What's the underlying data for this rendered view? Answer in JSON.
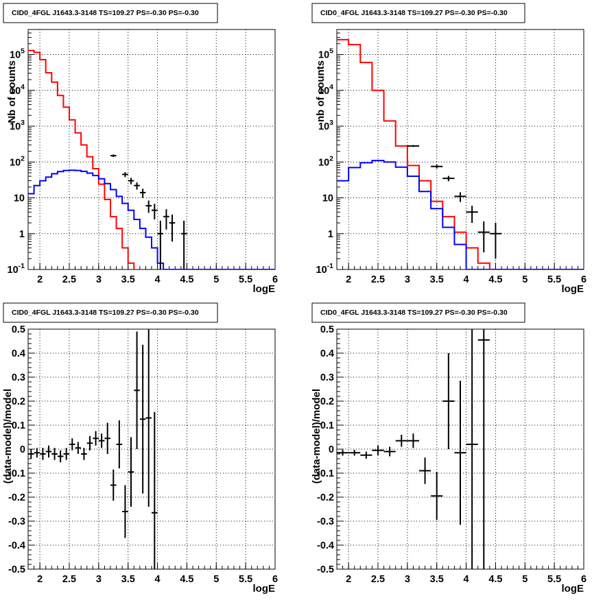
{
  "chart_data": [
    {
      "type": "histogram",
      "title": "CID0_4FGL J1643.3-3148 TS=109.27 PS=-0.30 PS=-0.30",
      "xlabel": "logE",
      "ylabel": "Nb of counts",
      "xlim": [
        1.8,
        6.0
      ],
      "ylim": [
        0.1,
        500000
      ],
      "yscale": "log",
      "grid": true,
      "x_ticks": [
        "2",
        "2.5",
        "3",
        "3.5",
        "4",
        "4.5",
        "5",
        "5.5",
        "6"
      ],
      "y_ticks": [
        "10^-1",
        "1",
        "10",
        "10^2",
        "10^3",
        "10^4",
        "10^5"
      ],
      "bin_edges": [
        1.8,
        1.9,
        2.0,
        2.1,
        2.2,
        2.3,
        2.4,
        2.5,
        2.6,
        2.7,
        2.8,
        2.9,
        3.0,
        3.1,
        3.2,
        3.3,
        3.4,
        3.5,
        3.6,
        3.7,
        3.8,
        3.9,
        4.0,
        4.1,
        4.2,
        4.3,
        4.4,
        4.5,
        4.6,
        4.7,
        4.8,
        4.9,
        5.0,
        5.1,
        5.2,
        5.3,
        5.4,
        5.5,
        5.6,
        5.7,
        5.8,
        5.9,
        6.0
      ],
      "series": [
        {
          "color": "#ff0000",
          "style": "step",
          "values": [
            130000,
            115000,
            72000,
            31000,
            17000,
            7200,
            3400,
            1500,
            650,
            300,
            140,
            65,
            24,
            9,
            3,
            1.4,
            0.4,
            0.15,
            0.05,
            0.05,
            0.05,
            0.05,
            0.05,
            0.05,
            0.05,
            0.05,
            0.05,
            0.05,
            0.05,
            0.05,
            0.05,
            0.05,
            0.05,
            0.05,
            0.05,
            0.05,
            0.05,
            0.05,
            0.05,
            0.05,
            0.05,
            0.05
          ]
        },
        {
          "color": "#0000ff",
          "style": "step",
          "values": [
            13,
            22,
            30,
            38,
            47,
            54,
            58,
            59,
            58,
            55,
            49,
            42,
            34,
            25,
            17,
            11,
            7,
            4.5,
            2.5,
            1.4,
            0.8,
            0.4,
            0.15,
            0.1,
            0.1,
            0.1,
            0.1,
            0.1,
            0.1,
            0.1,
            0.1,
            0.1,
            0.1,
            0.1,
            0.1,
            0.1,
            0.1,
            0.1,
            0.1,
            0.1,
            0.1,
            0.1
          ]
        },
        {
          "color": "#000000",
          "style": "errorbar",
          "points": [
            {
              "x": 3.25,
              "y": 150,
              "ylo": 138,
              "yhi": 162,
              "xerr": 0.05
            },
            {
              "x": 3.45,
              "y": 45,
              "ylo": 38,
              "yhi": 52,
              "xerr": 0.05
            },
            {
              "x": 3.55,
              "y": 30,
              "ylo": 24,
              "yhi": 36,
              "xerr": 0.05
            },
            {
              "x": 3.65,
              "y": 22,
              "ylo": 17,
              "yhi": 27,
              "xerr": 0.05
            },
            {
              "x": 3.75,
              "y": 14,
              "ylo": 10,
              "yhi": 18,
              "xerr": 0.05
            },
            {
              "x": 3.85,
              "y": 6,
              "ylo": 3.8,
              "yhi": 8.4,
              "xerr": 0.05
            },
            {
              "x": 3.95,
              "y": 4.5,
              "ylo": 2.5,
              "yhi": 6.8,
              "xerr": 0.05
            },
            {
              "x": 4.05,
              "y": 1,
              "ylo": 0.05,
              "yhi": 2.3,
              "xerr": 0.05
            },
            {
              "x": 4.15,
              "y": 3,
              "ylo": 1.3,
              "yhi": 4.8,
              "xerr": 0.05
            },
            {
              "x": 4.25,
              "y": 2,
              "ylo": 0.6,
              "yhi": 3.4,
              "xerr": 0.05
            },
            {
              "x": 4.45,
              "y": 1,
              "ylo": 0.05,
              "yhi": 2.3,
              "xerr": 0.05
            }
          ]
        }
      ]
    },
    {
      "type": "histogram",
      "title": "CID0_4FGL J1643.3-3148 TS=109.27 PS=-0.30 PS=-0.30",
      "xlabel": "logE",
      "ylabel": "nb of counts",
      "xlim": [
        1.8,
        6.0
      ],
      "ylim": [
        0.1,
        500000
      ],
      "yscale": "log",
      "grid": true,
      "x_ticks": [
        "2",
        "2.5",
        "3",
        "3.5",
        "4",
        "4.5",
        "5",
        "5.5",
        "6"
      ],
      "y_ticks": [
        "10^-1",
        "1",
        "10",
        "10^2",
        "10^3",
        "10^4",
        "10^5"
      ],
      "bin_edges": [
        1.8,
        2.0,
        2.2,
        2.4,
        2.6,
        2.8,
        3.0,
        3.2,
        3.4,
        3.6,
        3.8,
        4.0,
        4.2,
        4.4,
        4.6,
        4.8,
        5.0,
        5.2,
        5.4,
        5.6,
        5.8,
        6.0
      ],
      "series": [
        {
          "color": "#ff0000",
          "style": "step",
          "values": [
            260000,
            190000,
            60000,
            10000,
            1400,
            280,
            80,
            30,
            8,
            3,
            1.1,
            0.4,
            0.15,
            0.05,
            0.05,
            0.05,
            0.05,
            0.05,
            0.05,
            0.05,
            0.05
          ]
        },
        {
          "color": "#0000ff",
          "style": "step",
          "values": [
            30,
            70,
            95,
            110,
            100,
            72,
            40,
            15,
            5,
            1.5,
            0.5,
            0.1,
            0.1,
            0.1,
            0.1,
            0.1,
            0.1,
            0.1,
            0.1,
            0.1,
            0.1
          ]
        },
        {
          "color": "#000000",
          "style": "errorbar",
          "points": [
            {
              "x": 3.1,
              "y": 280,
              "ylo": 263,
              "yhi": 297,
              "xerr": 0.1
            },
            {
              "x": 3.5,
              "y": 75,
              "ylo": 66,
              "yhi": 84,
              "xerr": 0.1
            },
            {
              "x": 3.7,
              "y": 35,
              "ylo": 29,
              "yhi": 41,
              "xerr": 0.1
            },
            {
              "x": 3.9,
              "y": 11,
              "ylo": 7.7,
              "yhi": 14.3,
              "xerr": 0.1
            },
            {
              "x": 4.1,
              "y": 4,
              "ylo": 2,
              "yhi": 6,
              "xerr": 0.1
            },
            {
              "x": 4.3,
              "y": 1.1,
              "ylo": 0.3,
              "yhi": 2.2,
              "xerr": 0.1
            },
            {
              "x": 4.5,
              "y": 1.0,
              "ylo": 0.2,
              "yhi": 2.0,
              "xerr": 0.1
            }
          ]
        }
      ]
    },
    {
      "type": "scatter",
      "title": "CID0_4FGL J1643.3-3148 TS=109.27 PS=-0.30 PS=-0.30",
      "xlabel": "logE",
      "ylabel": "(data-model)/model",
      "xlim": [
        1.8,
        6.0
      ],
      "ylim": [
        -0.5,
        0.5
      ],
      "grid": true,
      "x_ticks": [
        "2",
        "2.5",
        "3",
        "3.5",
        "4",
        "4.5",
        "5",
        "5.5",
        "6"
      ],
      "y_ticks": [
        "-0.5",
        "-0.4",
        "-0.3",
        "-0.2",
        "-0.1",
        "0",
        "0.1",
        "0.2",
        "0.3",
        "0.4",
        "0.5"
      ],
      "series": [
        {
          "color": "#000000",
          "style": "errorbar",
          "points": [
            {
              "x": 1.85,
              "y": -0.02,
              "yerr": 0.02,
              "xerr": 0.05
            },
            {
              "x": 1.95,
              "y": -0.015,
              "yerr": 0.02,
              "xerr": 0.05
            },
            {
              "x": 2.05,
              "y": -0.02,
              "yerr": 0.025,
              "xerr": 0.05
            },
            {
              "x": 2.15,
              "y": -0.01,
              "yerr": 0.025,
              "xerr": 0.05
            },
            {
              "x": 2.25,
              "y": -0.02,
              "yerr": 0.025,
              "xerr": 0.05
            },
            {
              "x": 2.35,
              "y": -0.03,
              "yerr": 0.025,
              "xerr": 0.05
            },
            {
              "x": 2.45,
              "y": -0.02,
              "yerr": 0.025,
              "xerr": 0.05
            },
            {
              "x": 2.55,
              "y": 0.02,
              "yerr": 0.025,
              "xerr": 0.05
            },
            {
              "x": 2.65,
              "y": 0.005,
              "yerr": 0.025,
              "xerr": 0.05
            },
            {
              "x": 2.75,
              "y": -0.02,
              "yerr": 0.025,
              "xerr": 0.05
            },
            {
              "x": 2.85,
              "y": 0.025,
              "yerr": 0.03,
              "xerr": 0.05
            },
            {
              "x": 2.95,
              "y": 0.045,
              "yerr": 0.03,
              "xerr": 0.05
            },
            {
              "x": 3.05,
              "y": 0.035,
              "yerr": 0.03,
              "xerr": 0.05
            },
            {
              "x": 3.15,
              "y": 0.045,
              "yerr": 0.065,
              "xerr": 0.05
            },
            {
              "x": 3.25,
              "y": -0.15,
              "yerr": 0.065,
              "xerr": 0.05
            },
            {
              "x": 3.35,
              "y": 0.02,
              "yerr": 0.1,
              "xerr": 0.05
            },
            {
              "x": 3.45,
              "y": -0.26,
              "yerr": 0.11,
              "xerr": 0.05
            },
            {
              "x": 3.55,
              "y": -0.095,
              "yerr": 0.145,
              "xerr": 0.05
            },
            {
              "x": 3.65,
              "y": 0.245,
              "yerr": 0.245,
              "xerr": 0.05
            },
            {
              "x": 3.75,
              "y": 0.125,
              "yerr": 0.31,
              "xerr": 0.05
            },
            {
              "x": 3.85,
              "y": 0.13,
              "yerr": 0.37,
              "xerr": 0.05
            },
            {
              "x": 3.95,
              "y": -0.265,
              "yerr": 0.42,
              "xerr": 0.05
            }
          ]
        }
      ]
    },
    {
      "type": "scatter",
      "title": "CID0_4FGL J1643.3-3148 TS=109.27 PS=-0.30 PS=-0.30",
      "xlabel": "logE",
      "ylabel": "(data-model)/model",
      "xlim": [
        1.8,
        6.0
      ],
      "ylim": [
        -0.5,
        0.5
      ],
      "grid": true,
      "x_ticks": [
        "2",
        "2.5",
        "3",
        "3.5",
        "4",
        "4.5",
        "5",
        "5.5",
        "6"
      ],
      "y_ticks": [
        "-0.5",
        "-0.4",
        "-0.3",
        "-0.2",
        "-0.1",
        "0",
        "0.1",
        "0.2",
        "0.3",
        "0.4",
        "0.5"
      ],
      "series": [
        {
          "color": "#000000",
          "style": "errorbar",
          "points": [
            {
              "x": 1.9,
              "y": -0.015,
              "yerr": 0.012,
              "xerr": 0.1
            },
            {
              "x": 2.1,
              "y": -0.015,
              "yerr": 0.012,
              "xerr": 0.1
            },
            {
              "x": 2.3,
              "y": -0.025,
              "yerr": 0.015,
              "xerr": 0.1
            },
            {
              "x": 2.5,
              "y": -0.005,
              "yerr": 0.02,
              "xerr": 0.1
            },
            {
              "x": 2.7,
              "y": -0.01,
              "yerr": 0.02,
              "xerr": 0.1
            },
            {
              "x": 2.9,
              "y": 0.035,
              "yerr": 0.025,
              "xerr": 0.1
            },
            {
              "x": 3.1,
              "y": 0.035,
              "yerr": 0.03,
              "xerr": 0.1
            },
            {
              "x": 3.3,
              "y": -0.09,
              "yerr": 0.055,
              "xerr": 0.1
            },
            {
              "x": 3.5,
              "y": -0.195,
              "yerr": 0.1,
              "xerr": 0.1
            },
            {
              "x": 3.7,
              "y": 0.2,
              "yerr": 0.2,
              "xerr": 0.1
            },
            {
              "x": 3.9,
              "y": -0.015,
              "yerr": 0.3,
              "xerr": 0.1
            },
            {
              "x": 4.1,
              "y": 0.02,
              "yerr": 0.6,
              "xerr": 0.1
            },
            {
              "x": 4.3,
              "y": 0.455,
              "yerr": 0.98,
              "xerr": 0.1
            }
          ]
        }
      ]
    }
  ]
}
